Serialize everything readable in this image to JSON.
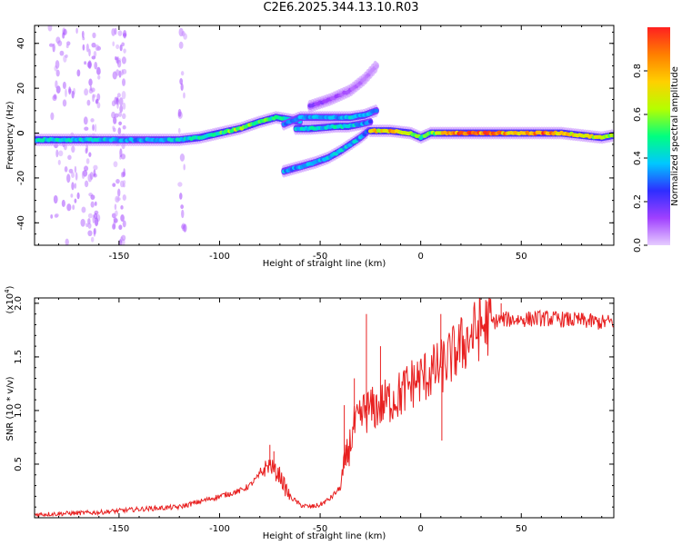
{
  "title": "C2E6.2025.344.13.10.R03",
  "chart_data": [
    {
      "type": "heatmap",
      "panel": "top",
      "xlabel": "Height of straight line (km)",
      "ylabel": "Frequency (Hz)",
      "xlim": [
        -192,
        96
      ],
      "ylim": [
        -50,
        48
      ],
      "x_ticks": [
        -150,
        -100,
        -50,
        0,
        50
      ],
      "y_ticks": [
        -40,
        -20,
        0,
        20,
        40
      ],
      "colorbar": {
        "label": "Normalized spectral amplitude",
        "range": [
          0.0,
          1.0
        ],
        "ticks": [
          0.0,
          0.2,
          0.4,
          0.6,
          0.8
        ],
        "colors": [
          "#e6ccff",
          "#a040ff",
          "#2e2eff",
          "#00c8ff",
          "#00ff80",
          "#b4ff00",
          "#ffd000",
          "#ff7f00",
          "#ff2020"
        ]
      },
      "traces": [
        {
          "name": "main echo",
          "x": [
            -192,
            -160,
            -140,
            -120,
            -110,
            -100,
            -90,
            -80,
            -72,
            -65,
            -60
          ],
          "freq": [
            -3,
            -3,
            -3,
            -3,
            -2,
            0,
            2,
            5,
            7,
            6,
            5
          ],
          "amp": [
            0.45,
            0.4,
            0.35,
            0.4,
            0.45,
            0.5,
            0.65,
            0.55,
            0.5,
            0.4,
            0.35
          ]
        },
        {
          "name": "upper branch",
          "x": [
            -68,
            -60,
            -50,
            -42,
            -35,
            -28,
            -22
          ],
          "freq": [
            4,
            7,
            7,
            7,
            7,
            8,
            10
          ],
          "amp": [
            0.3,
            0.35,
            0.35,
            0.35,
            0.4,
            0.4,
            0.3
          ]
        },
        {
          "name": "mid branch",
          "x": [
            -62,
            -55,
            -48,
            -42,
            -36,
            -30,
            -25
          ],
          "freq": [
            2,
            2,
            2.5,
            3,
            3,
            4,
            5
          ],
          "amp": [
            0.4,
            0.45,
            0.4,
            0.45,
            0.45,
            0.35,
            0.3
          ]
        },
        {
          "name": "faint upper",
          "x": [
            -55,
            -45,
            -35,
            -28,
            -22
          ],
          "freq": [
            12,
            15,
            19,
            24,
            30
          ],
          "amp": [
            0.15,
            0.12,
            0.1,
            0.08,
            0.05
          ]
        },
        {
          "name": "lower branch",
          "x": [
            -68,
            -60,
            -52,
            -46,
            -40,
            -35,
            -30,
            -26
          ],
          "freq": [
            -17,
            -15,
            -13,
            -11,
            -8,
            -5,
            -2,
            1
          ],
          "amp": [
            0.35,
            0.35,
            0.35,
            0.4,
            0.4,
            0.4,
            0.35,
            0.3
          ]
        },
        {
          "name": "post echo",
          "x": [
            -25,
            -15,
            -5,
            0,
            5,
            10,
            20,
            30,
            40,
            50,
            60,
            70,
            80,
            90,
            96
          ],
          "freq": [
            1,
            1,
            0,
            -2,
            0,
            0,
            0,
            0,
            0,
            0,
            0,
            0,
            -1,
            -2,
            -1
          ],
          "amp": [
            0.7,
            0.8,
            0.65,
            0.5,
            0.55,
            0.7,
            0.95,
            0.9,
            0.85,
            0.8,
            0.9,
            0.75,
            0.7,
            0.65,
            0.6
          ]
        }
      ]
    },
    {
      "type": "line",
      "panel": "bottom",
      "xlabel": "Height of straight line (km)",
      "ylabel": "SNR (10 * v/v)",
      "scale_label": "(x10",
      "scale_exponent": "4",
      "scale_suffix": ")",
      "xlim": [
        -192,
        96
      ],
      "ylim": [
        0,
        2.05
      ],
      "x_ticks": [
        -150,
        -100,
        -50,
        0,
        50
      ],
      "y_ticks": [
        0.5,
        1.0,
        1.5,
        2.0
      ],
      "y_tick_labels": [
        "0.5",
        "1.0",
        "1.5",
        "2.0"
      ],
      "color": "#e82020",
      "series": [
        {
          "name": "SNR",
          "x": [
            -192,
            -160,
            -140,
            -120,
            -110,
            -100,
            -90,
            -85,
            -80,
            -78,
            -75,
            -72,
            -70,
            -68,
            -65,
            -60,
            -55,
            -50,
            -45,
            -40,
            -37,
            -35,
            -33,
            -30,
            -28,
            -25,
            -20,
            -15,
            -10,
            -5,
            0,
            5,
            10,
            15,
            20,
            25,
            30,
            35,
            40,
            50,
            60,
            70,
            80,
            90,
            96
          ],
          "y": [
            0.03,
            0.05,
            0.08,
            0.1,
            0.15,
            0.2,
            0.25,
            0.3,
            0.4,
            0.45,
            0.5,
            0.42,
            0.4,
            0.3,
            0.2,
            0.12,
            0.1,
            0.12,
            0.18,
            0.28,
            0.55,
            0.7,
            0.85,
            0.9,
            1.0,
            1.0,
            1.05,
            1.1,
            1.15,
            1.25,
            1.3,
            1.35,
            1.4,
            1.5,
            1.6,
            1.7,
            1.78,
            1.82,
            1.85,
            1.85,
            1.86,
            1.85,
            1.84,
            1.82,
            1.83
          ]
        }
      ],
      "spikes": [
        {
          "x": -75,
          "y": 0.68
        },
        {
          "x": -73,
          "y": 0.62
        },
        {
          "x": -38,
          "y": 1.05
        },
        {
          "x": -33,
          "y": 1.3
        },
        {
          "x": -27,
          "y": 1.9
        },
        {
          "x": -20,
          "y": 1.6
        },
        {
          "x": 10,
          "y": 1.9
        },
        {
          "x": 10.5,
          "y": 0.72
        },
        {
          "x": 40,
          "y": 2.0
        }
      ]
    }
  ]
}
